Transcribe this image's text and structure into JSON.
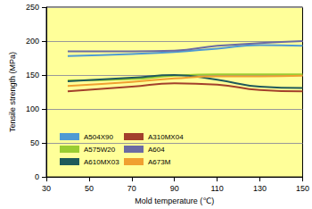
{
  "chart_data": {
    "type": "line",
    "x_label": "Mold temperature (℃)",
    "y_label": "Tensile strength (MPa)",
    "x": [
      40,
      70,
      90,
      110,
      130,
      150
    ],
    "series": [
      {
        "name": "A504X90",
        "color": "#4f9bd3",
        "values": [
          178,
          181,
          184,
          189,
          194,
          193
        ]
      },
      {
        "name": "A310MX04",
        "color": "#a3402b",
        "values": [
          126,
          133,
          138,
          136,
          128,
          126
        ]
      },
      {
        "name": "A575W20",
        "color": "#9acd32",
        "values": [
          142,
          144,
          149,
          151,
          151,
          151
        ]
      },
      {
        "name": "A604",
        "color": "#6b6ba3",
        "values": [
          185,
          185,
          186,
          193,
          197,
          200
        ]
      },
      {
        "name": "A610MX03",
        "color": "#1f5a5a",
        "values": [
          141,
          146,
          150,
          143,
          133,
          131
        ]
      },
      {
        "name": "A673M",
        "color": "#f0a030",
        "values": [
          134,
          140,
          145,
          148,
          148,
          149
        ]
      }
    ],
    "xlim": [
      30,
      150
    ],
    "xticks": [
      30,
      50,
      70,
      90,
      110,
      130,
      150
    ],
    "ylim": [
      0,
      250
    ],
    "yticks": [
      0,
      50,
      100,
      150,
      200,
      250
    ],
    "grid": true,
    "legend": "lower left"
  }
}
